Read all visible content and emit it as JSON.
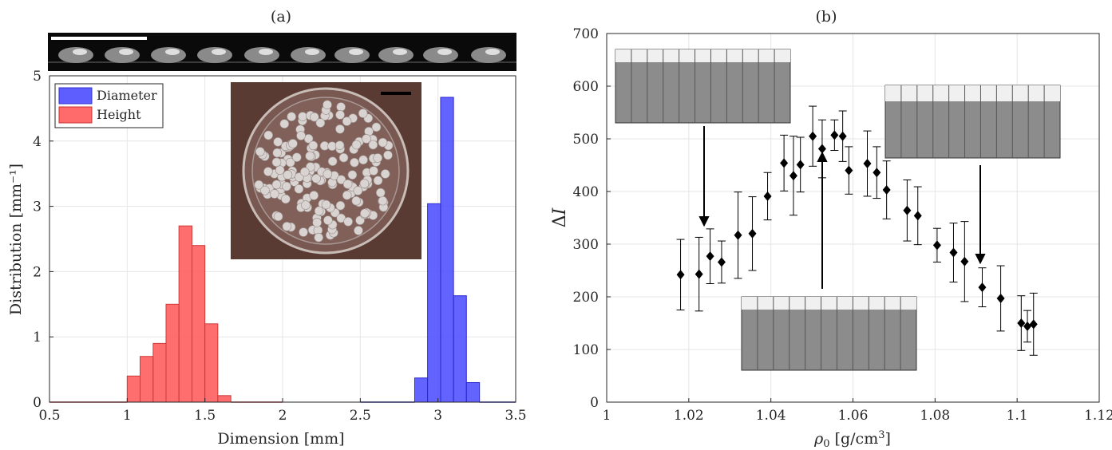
{
  "panels": {
    "a": {
      "label": "(a)"
    },
    "b": {
      "label": "(b)"
    }
  },
  "colors": {
    "diameter": "#4d4dff",
    "height": "#ff5a5a",
    "marker": "#000000"
  },
  "chart_data": [
    {
      "type": "histogram",
      "xlabel": "Dimension [mm]",
      "ylabel": "Distribution [mm⁻¹]",
      "xlim": [
        0.5,
        3.5
      ],
      "ylim": [
        0,
        5
      ],
      "xticks": [
        0.5,
        1,
        1.5,
        2,
        2.5,
        3,
        3.5
      ],
      "xtick_labels": [
        "0.5",
        "1",
        "1.5",
        "2",
        "2.5",
        "3",
        "3.5"
      ],
      "yticks": [
        0,
        1,
        2,
        3,
        4,
        5
      ],
      "ytick_labels": [
        "0",
        "1",
        "2",
        "3",
        "4",
        "5"
      ],
      "grid": true,
      "legend": "top-left",
      "insets": [
        "photo-strip-of-drops-with-scale-bar",
        "photo-of-petri-dish-with-beads-with-scale-bar"
      ],
      "series": [
        {
          "name": "Diameter",
          "bin_width": 0.083,
          "bins": [
            {
              "x0": 2.85,
              "x1": 2.933,
              "value": 0.37
            },
            {
              "x0": 2.933,
              "x1": 3.017,
              "value": 3.04
            },
            {
              "x0": 3.017,
              "x1": 3.1,
              "value": 4.67
            },
            {
              "x0": 3.1,
              "x1": 3.183,
              "value": 1.63
            },
            {
              "x0": 3.183,
              "x1": 3.267,
              "value": 0.3
            }
          ]
        },
        {
          "name": "Height",
          "bin_width": 0.083,
          "bins": [
            {
              "x0": 1.0,
              "x1": 1.083,
              "value": 0.4
            },
            {
              "x0": 1.083,
              "x1": 1.167,
              "value": 0.7
            },
            {
              "x0": 1.167,
              "x1": 1.25,
              "value": 0.9
            },
            {
              "x0": 1.25,
              "x1": 1.333,
              "value": 1.5
            },
            {
              "x0": 1.333,
              "x1": 1.417,
              "value": 2.7
            },
            {
              "x0": 1.417,
              "x1": 1.5,
              "value": 2.4
            },
            {
              "x0": 1.5,
              "x1": 1.583,
              "value": 1.2
            },
            {
              "x0": 1.583,
              "x1": 1.667,
              "value": 0.1
            }
          ]
        }
      ]
    },
    {
      "type": "scatter",
      "xlabel": "ρ₀ [g/cm³]",
      "ylabel": "ΔI",
      "xlim": [
        1.0,
        1.12
      ],
      "ylim": [
        0,
        700
      ],
      "xticks": [
        1,
        1.02,
        1.04,
        1.06,
        1.08,
        1.1,
        1.12
      ],
      "xtick_labels": [
        "1",
        "1.02",
        "1.04",
        "1.06",
        "1.08",
        "1.1",
        "1.12"
      ],
      "yticks": [
        0,
        100,
        200,
        300,
        400,
        500,
        600,
        700
      ],
      "ytick_labels": [
        "0",
        "100",
        "200",
        "300",
        "400",
        "500",
        "600",
        "700"
      ],
      "grid": true,
      "insets": [
        "photo-top-left",
        "photo-bottom-center",
        "photo-top-right"
      ],
      "points": [
        {
          "x": 1.018,
          "y": 242,
          "err": 67
        },
        {
          "x": 1.0225,
          "y": 243,
          "err": 70
        },
        {
          "x": 1.0252,
          "y": 277,
          "err": 52
        },
        {
          "x": 1.028,
          "y": 266,
          "err": 40
        },
        {
          "x": 1.032,
          "y": 317,
          "err": 82
        },
        {
          "x": 1.0355,
          "y": 320,
          "err": 70
        },
        {
          "x": 1.0392,
          "y": 391,
          "err": 45
        },
        {
          "x": 1.0432,
          "y": 454,
          "err": 53
        },
        {
          "x": 1.0455,
          "y": 430,
          "err": 75
        },
        {
          "x": 1.0472,
          "y": 451,
          "err": 52
        },
        {
          "x": 1.0502,
          "y": 505,
          "err": 57
        },
        {
          "x": 1.0525,
          "y": 481,
          "err": 55
        },
        {
          "x": 1.0555,
          "y": 507,
          "err": 29
        },
        {
          "x": 1.0575,
          "y": 505,
          "err": 48
        },
        {
          "x": 1.059,
          "y": 440,
          "err": 45
        },
        {
          "x": 1.0635,
          "y": 453,
          "err": 62
        },
        {
          "x": 1.0658,
          "y": 436,
          "err": 49
        },
        {
          "x": 1.0682,
          "y": 403,
          "err": 55
        },
        {
          "x": 1.0732,
          "y": 364,
          "err": 58
        },
        {
          "x": 1.0758,
          "y": 354,
          "err": 55
        },
        {
          "x": 1.0805,
          "y": 298,
          "err": 32
        },
        {
          "x": 1.0845,
          "y": 284,
          "err": 56
        },
        {
          "x": 1.0872,
          "y": 267,
          "err": 76
        },
        {
          "x": 1.0915,
          "y": 218,
          "err": 37
        },
        {
          "x": 1.096,
          "y": 197,
          "err": 62
        },
        {
          "x": 1.101,
          "y": 150,
          "err": 52
        },
        {
          "x": 1.1025,
          "y": 144,
          "err": 30
        },
        {
          "x": 1.104,
          "y": 148,
          "err": 59
        }
      ]
    }
  ]
}
